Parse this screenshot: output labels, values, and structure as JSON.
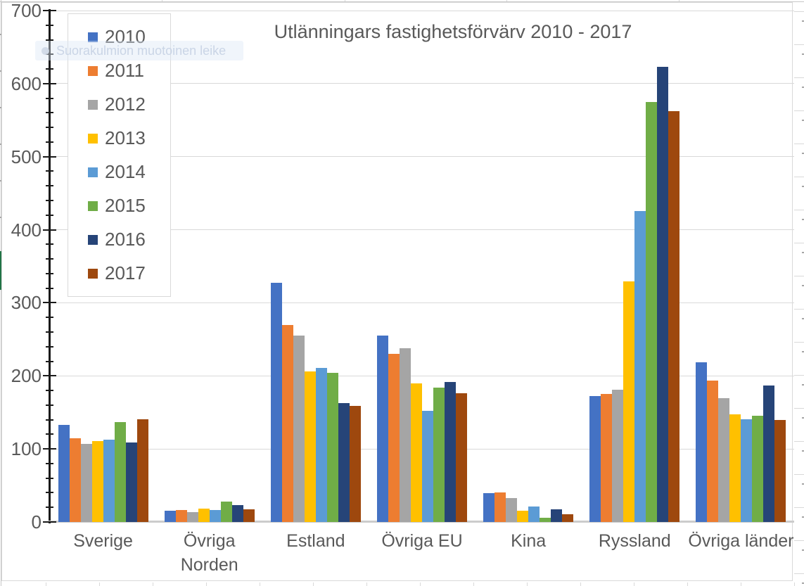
{
  "overlay": {
    "label": "Suorakulmion muotoinen leike"
  },
  "chart_data": {
    "type": "bar",
    "title": "Utlänningars fastighetsförvärv 2010 - 2017",
    "categories": [
      "Sverige",
      "Övriga Norden",
      "Estland",
      "Övriga EU",
      "Kina",
      "Ryssland",
      "Övriga länder"
    ],
    "categories_display": [
      [
        "Sverige"
      ],
      [
        "Övriga",
        "Norden"
      ],
      [
        "Estland"
      ],
      [
        "Övriga EU"
      ],
      [
        "Kina"
      ],
      [
        "Ryssland"
      ],
      [
        "Övriga länder"
      ]
    ],
    "series": [
      {
        "name": "2010",
        "color": "#4472C4",
        "values": [
          133,
          15,
          327,
          255,
          39,
          172,
          219
        ]
      },
      {
        "name": "2011",
        "color": "#ED7D31",
        "values": [
          115,
          16,
          270,
          230,
          40,
          175,
          194
        ]
      },
      {
        "name": "2012",
        "color": "#A5A5A5",
        "values": [
          107,
          13,
          255,
          238,
          33,
          181,
          169
        ]
      },
      {
        "name": "2013",
        "color": "#FFC000",
        "values": [
          111,
          18,
          206,
          190,
          15,
          329,
          147
        ]
      },
      {
        "name": "2014",
        "color": "#5B9BD5",
        "values": [
          113,
          16,
          211,
          152,
          21,
          426,
          141
        ]
      },
      {
        "name": "2015",
        "color": "#70AD47",
        "values": [
          137,
          28,
          204,
          184,
          6,
          575,
          145
        ]
      },
      {
        "name": "2016",
        "color": "#264478",
        "values": [
          109,
          23,
          163,
          192,
          17,
          623,
          187
        ]
      },
      {
        "name": "2017",
        "color": "#9E480E",
        "values": [
          141,
          17,
          159,
          176,
          11,
          562,
          140
        ]
      }
    ],
    "ylim": [
      0,
      700
    ],
    "y_major_ticks": [
      0,
      100,
      200,
      300,
      400,
      500,
      600,
      700
    ],
    "y_minor_interval": 20,
    "grid": true,
    "legend_position": "upper-left",
    "gridline_color": "#D9D9D9",
    "text_color": "#595959"
  }
}
